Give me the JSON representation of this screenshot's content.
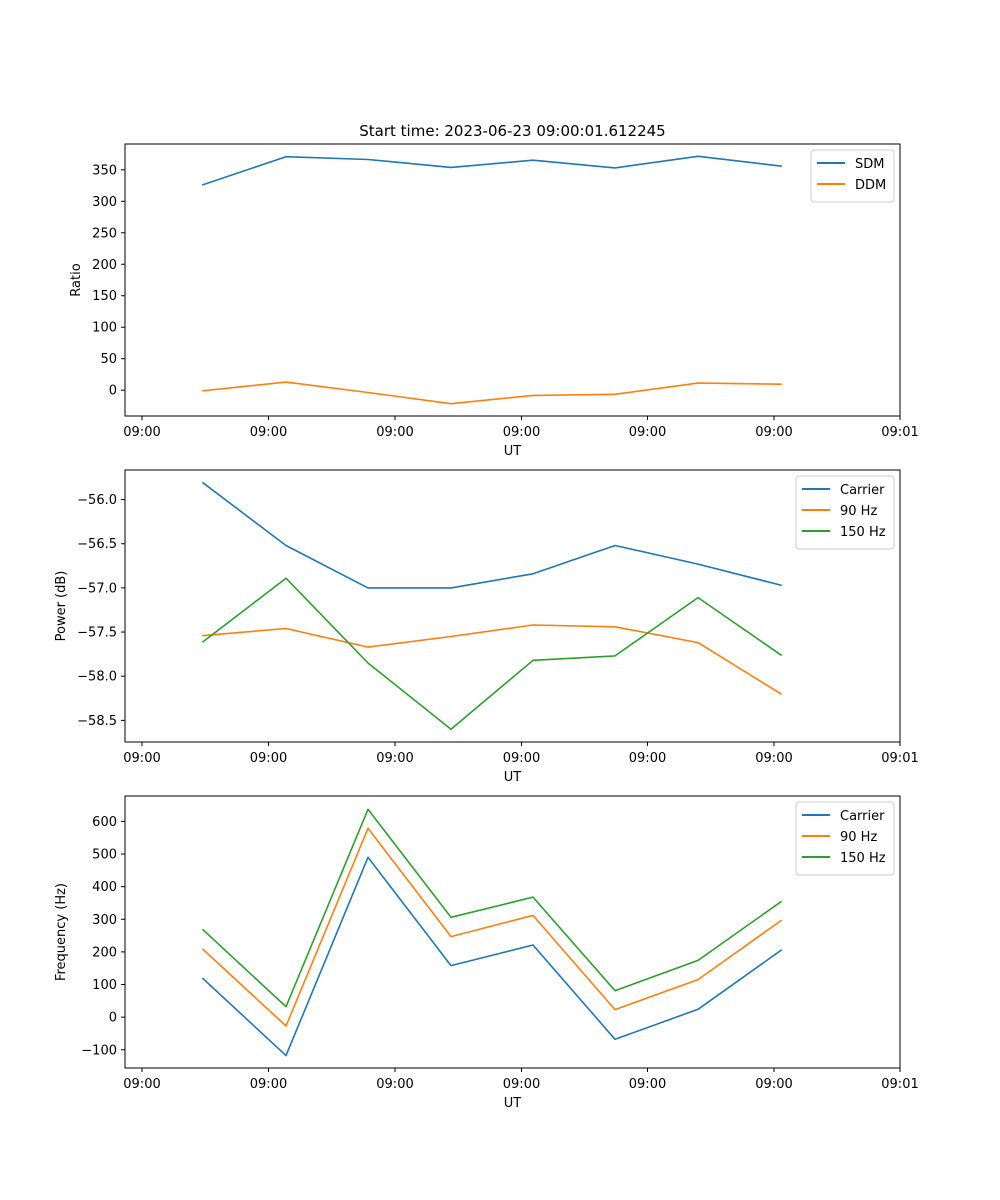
{
  "title": "Start time: 2023-06-23 09:00:01.612245",
  "colors": {
    "blue": "#1f77b4",
    "orange": "#ff7f0e",
    "green": "#2ca02c"
  },
  "chart_data": [
    {
      "type": "line",
      "title": "Start time: 2023-06-23 09:00:01.612245",
      "xlabel": "UT",
      "ylabel": "Ratio",
      "x_tick_labels": [
        "09:00",
        "09:00",
        "09:00",
        "09:00",
        "09:00",
        "09:00",
        "09:01"
      ],
      "y_ticks": [
        0,
        50,
        100,
        150,
        200,
        250,
        300,
        350
      ],
      "ylim": [
        -41,
        391
      ],
      "grid": false,
      "legend_position": "top-right",
      "series": [
        {
          "name": "SDM",
          "color": "#1f77b4",
          "values": [
            326.3,
            370.9,
            366.4,
            353.9,
            365.3,
            353.0,
            371.5,
            355.9
          ]
        },
        {
          "name": "DDM",
          "color": "#ff7f0e",
          "values": [
            -1.0,
            12.8,
            -3.7,
            -21.5,
            -8.3,
            -6.5,
            11.3,
            9.5
          ]
        }
      ]
    },
    {
      "type": "line",
      "title": "",
      "xlabel": "UT",
      "ylabel": "Power (dB)",
      "x_tick_labels": [
        "09:00",
        "09:00",
        "09:00",
        "09:00",
        "09:00",
        "09:00",
        "09:01"
      ],
      "y_ticks": [
        -58.5,
        -58.0,
        -57.5,
        -57.0,
        -56.5,
        -56.0
      ],
      "y_tick_labels": [
        "−58.5",
        "−58.0",
        "−57.5",
        "−57.0",
        "−56.5",
        "−56.0"
      ],
      "ylim": [
        -58.745,
        -55.665
      ],
      "grid": false,
      "legend_position": "top-right",
      "series": [
        {
          "name": "Carrier",
          "color": "#1f77b4",
          "values": [
            -55.81,
            -56.52,
            -57.0,
            -57.0,
            -56.84,
            -56.52,
            -56.73,
            -56.97
          ]
        },
        {
          "name": "90 Hz",
          "color": "#ff7f0e",
          "values": [
            -57.54,
            -57.46,
            -57.67,
            -57.55,
            -57.42,
            -57.44,
            -57.62,
            -58.2
          ]
        },
        {
          "name": "150 Hz",
          "color": "#2ca02c",
          "values": [
            -57.61,
            -56.89,
            -57.85,
            -58.6,
            -57.82,
            -57.77,
            -57.11,
            -57.76
          ]
        }
      ]
    },
    {
      "type": "line",
      "title": "",
      "xlabel": "UT",
      "ylabel": "Frequency (Hz)",
      "x_tick_labels": [
        "09:00",
        "09:00",
        "09:00",
        "09:00",
        "09:00",
        "09:00",
        "09:01"
      ],
      "y_ticks": [
        -100,
        0,
        100,
        200,
        300,
        400,
        500,
        600
      ],
      "y_tick_labels": [
        "−100",
        "0",
        "100",
        "200",
        "300",
        "400",
        "500",
        "600"
      ],
      "ylim": [
        -155.9,
        677.9
      ],
      "grid": false,
      "legend_position": "top-right",
      "series": [
        {
          "name": "Carrier",
          "color": "#1f77b4",
          "values": [
            118,
            -118,
            490,
            158,
            221,
            -68,
            24,
            205
          ]
        },
        {
          "name": "90 Hz",
          "color": "#ff7f0e",
          "values": [
            208,
            -27,
            579,
            247,
            312,
            23,
            115,
            296
          ]
        },
        {
          "name": "150 Hz",
          "color": "#2ca02c",
          "values": [
            268,
            32,
            637,
            306,
            368,
            81,
            174,
            354
          ]
        }
      ]
    }
  ]
}
